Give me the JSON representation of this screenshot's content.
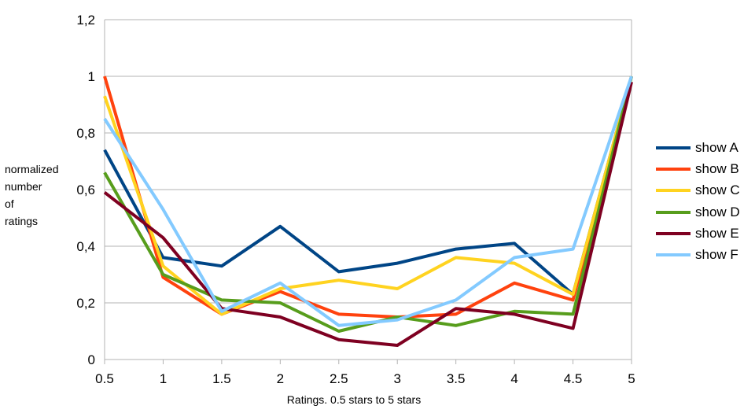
{
  "chart_data": {
    "type": "line",
    "xlabel": "Ratings. 0.5 stars to 5 stars",
    "ylabel_lines": [
      "normalized",
      "number",
      "of",
      "ratings"
    ],
    "x": [
      0.5,
      1,
      1.5,
      2,
      2.5,
      3,
      3.5,
      4,
      4.5,
      5
    ],
    "x_tick_labels": [
      "0.5",
      "1",
      "1.5",
      "2",
      "2.5",
      "3",
      "3.5",
      "4",
      "4.5",
      "5"
    ],
    "ylim": [
      0,
      1.2
    ],
    "y_tick_values": [
      0,
      0.2,
      0.4,
      0.6,
      0.8,
      1,
      1.2
    ],
    "y_tick_labels": [
      "0",
      "0,2",
      "0,4",
      "0,6",
      "0,8",
      "1",
      "1,2"
    ],
    "grid": "horizontal",
    "legend_position": "right",
    "series": [
      {
        "name": "show A",
        "color": "#004586",
        "values": [
          0.74,
          0.36,
          0.33,
          0.47,
          0.31,
          0.34,
          0.39,
          0.41,
          0.23,
          1.0
        ]
      },
      {
        "name": "show B",
        "color": "#ff420e",
        "values": [
          1.0,
          0.29,
          0.16,
          0.24,
          0.16,
          0.15,
          0.16,
          0.27,
          0.21,
          1.0
        ]
      },
      {
        "name": "show C",
        "color": "#ffd320",
        "values": [
          0.93,
          0.33,
          0.16,
          0.25,
          0.28,
          0.25,
          0.36,
          0.34,
          0.23,
          1.0
        ]
      },
      {
        "name": "show D",
        "color": "#579d1c",
        "values": [
          0.66,
          0.3,
          0.21,
          0.2,
          0.1,
          0.15,
          0.12,
          0.17,
          0.16,
          1.0
        ]
      },
      {
        "name": "show E",
        "color": "#7e0021",
        "values": [
          0.59,
          0.43,
          0.18,
          0.15,
          0.07,
          0.05,
          0.18,
          0.16,
          0.11,
          0.98
        ]
      },
      {
        "name": "show F",
        "color": "#83caff",
        "values": [
          0.85,
          0.53,
          0.17,
          0.27,
          0.12,
          0.14,
          0.21,
          0.36,
          0.39,
          1.0
        ]
      }
    ]
  }
}
